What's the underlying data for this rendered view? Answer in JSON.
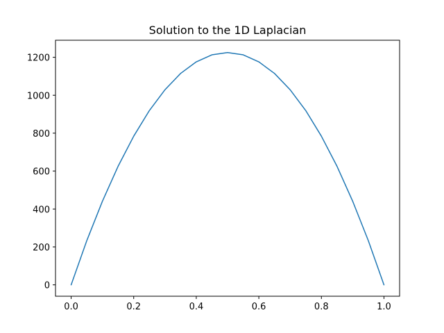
{
  "chart_data": {
    "type": "line",
    "title": "Solution to the 1D Laplacian",
    "xlabel": "",
    "ylabel": "",
    "xlim": [
      -0.05,
      1.05
    ],
    "ylim": [
      -60,
      1290
    ],
    "grid": false,
    "x_ticks": [
      0.0,
      0.2,
      0.4,
      0.6,
      0.8,
      1.0
    ],
    "x_tick_labels": [
      "0.0",
      "0.2",
      "0.4",
      "0.6",
      "0.8",
      "1.0"
    ],
    "y_ticks": [
      0,
      200,
      400,
      600,
      800,
      1000,
      1200
    ],
    "y_tick_labels": [
      "0",
      "200",
      "400",
      "600",
      "800",
      "1000",
      "1200"
    ],
    "series": [
      {
        "color": "#1f77b4",
        "x": [
          0.0,
          0.05,
          0.1,
          0.15,
          0.2,
          0.25,
          0.3,
          0.35,
          0.4,
          0.45,
          0.5,
          0.55,
          0.6,
          0.65,
          0.7,
          0.75,
          0.8,
          0.85,
          0.9,
          0.95,
          1.0
        ],
        "y": [
          0,
          233,
          441,
          625,
          784,
          919,
          1029,
          1115,
          1176,
          1213,
          1225,
          1213,
          1176,
          1115,
          1029,
          919,
          784,
          625,
          441,
          233,
          0
        ]
      }
    ]
  }
}
